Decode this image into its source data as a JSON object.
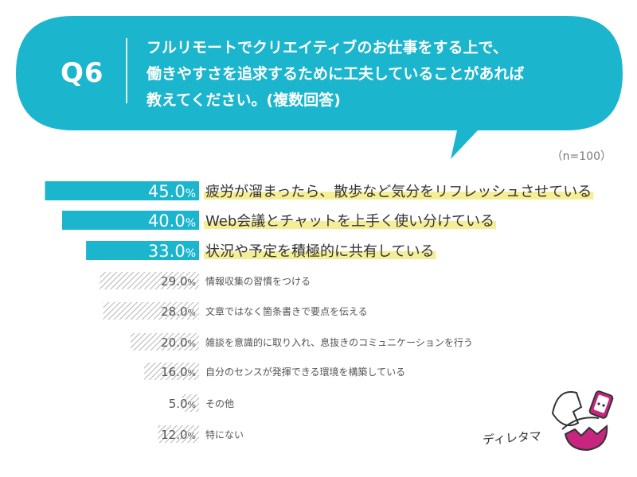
{
  "question": {
    "label": "Q6",
    "lines": [
      "フルリモートでクリエイティブのお仕事をする上で、",
      "働きやすさを追求するために工夫していることがあれば",
      "教えてください。(複数回答)"
    ]
  },
  "sample_size": "（n=100）",
  "credit": "ディレタマ",
  "colors": {
    "accent": "#1BB5CE",
    "highlight": "#F5EC8C",
    "hatch": "#B5B5B5",
    "text_dark": "#333333",
    "text_gray": "#555555"
  },
  "chart_data": {
    "type": "bar",
    "orientation": "horizontal",
    "unit": "%",
    "xlim": [
      0,
      50
    ],
    "categories": [
      "疲労が溜まったら、散歩など気分をリフレッシュさせている",
      "Web会議とチャットを上手く使い分けている",
      "状況や予定を積極的に共有している",
      "情報収集の習慣をつける",
      "文章ではなく箇条書きで要点を伝える",
      "雑談を意識的に取り入れ、息抜きのコミュニケーションを行う",
      "自分のセンスが発揮できる環境を構築している",
      "その他",
      "特にない"
    ],
    "values": [
      45.0,
      40.0,
      33.0,
      29.0,
      28.0,
      20.0,
      16.0,
      5.0,
      12.0
    ],
    "value_labels": [
      "45.0",
      "40.0",
      "33.0",
      "29.0",
      "28.0",
      "20.0",
      "16.0",
      "5.0",
      "12.0"
    ],
    "highlighted_top": 3
  }
}
